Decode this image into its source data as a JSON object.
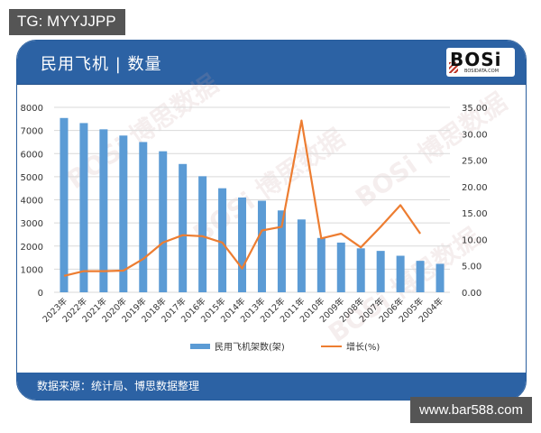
{
  "top_badge": "TG: MYYJJPP",
  "bottom_badge": "www.bar588.com",
  "card": {
    "title": "民用飞机 | 数量",
    "logo_text": "BOSi",
    "logo_subtext": "BOSIDATA.COM",
    "footer": "数据来源：统计局、博思数据整理",
    "colors": {
      "header": "#2c62a4",
      "bar": "#5b9bd5",
      "line": "#ed7d31"
    }
  },
  "watermarks": [
    "BOSi 博思数据",
    "BOSi 博思数据",
    "BOSi 博思数据",
    "BOSi 博思数据"
  ],
  "chart_data": {
    "type": "bar+line",
    "title": "民用飞机 | 数量",
    "categories": [
      "2023年",
      "2022年",
      "2021年",
      "2020年",
      "2019年",
      "2018年",
      "2017年",
      "2016年",
      "2015年",
      "2014年",
      "2013年",
      "2012年",
      "2011年",
      "2010年",
      "2009年",
      "2008年",
      "2007年",
      "2006年",
      "2005年",
      "2004年"
    ],
    "series": [
      {
        "name": "民用飞机架数(架)",
        "type": "bar",
        "axis": "left",
        "values": [
          7540,
          7320,
          7050,
          6780,
          6500,
          6100,
          5550,
          5020,
          4500,
          4100,
          3960,
          3540,
          3150,
          2350,
          2150,
          1900,
          1790,
          1580,
          1360,
          1230
        ]
      },
      {
        "name": "增长(%)",
        "type": "line",
        "axis": "right",
        "values": [
          3.1,
          4.0,
          4.0,
          4.1,
          6.3,
          9.4,
          10.8,
          10.6,
          9.4,
          4.5,
          11.7,
          12.4,
          32.5,
          10.2,
          11.1,
          8.5,
          12.4,
          16.5,
          11.1,
          null
        ]
      }
    ],
    "left_axis": {
      "ticks": [
        "0",
        "1000",
        "2000",
        "3000",
        "4000",
        "5000",
        "6000",
        "7000",
        "8000"
      ],
      "ylim": [
        0,
        8000
      ]
    },
    "right_axis": {
      "ticks": [
        "0.00",
        "5.00",
        "10.00",
        "15.00",
        "20.00",
        "25.00",
        "30.00",
        "35.00"
      ],
      "ylim": [
        0,
        35
      ]
    },
    "legend": [
      "民用飞机架数(架)",
      "增长(%)"
    ],
    "legend_position": "bottom",
    "grid": true,
    "xlabel": "",
    "ylabel": ""
  }
}
